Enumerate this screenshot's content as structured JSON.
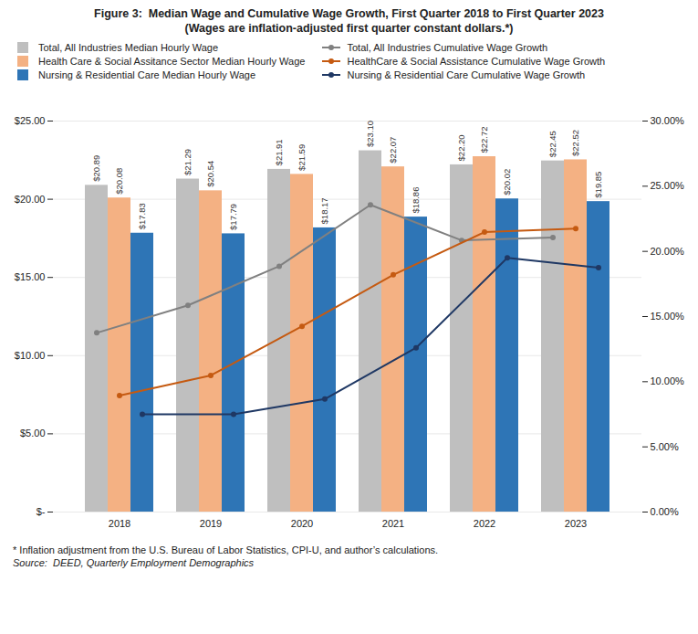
{
  "chart_data": {
    "type": "bar",
    "title": "Figure 3:  Median Wage and Cumulative Wage Growth, First Quarter 2018 to First Quarter 2023",
    "subtitle": "(Wages are inflation-adjusted first quarter constant dollars.*)",
    "categories": [
      "2018",
      "2019",
      "2020",
      "2021",
      "2022",
      "2023"
    ],
    "series": [
      {
        "name": "Total, All Industries Median Hourly Wage",
        "color": "#BFBFBF",
        "values": [
          20.89,
          21.29,
          21.91,
          23.1,
          22.2,
          22.45
        ],
        "value_labels": [
          "$20.89",
          "$21.29",
          "$21.91",
          "$23.10",
          "$22.20",
          "$22.45"
        ]
      },
      {
        "name": "Health Care & Social Assitance Sector Median Hourly Wage",
        "color": "#F4B183",
        "values": [
          20.08,
          20.54,
          21.59,
          22.07,
          22.72,
          22.52
        ],
        "value_labels": [
          "$20.08",
          "$20.54",
          "$21.59",
          "$22.07",
          "$22.72",
          "$22.52"
        ]
      },
      {
        "name": "Nursing & Residential Care Median Hourly Wage",
        "color": "#2E75B6",
        "values": [
          17.83,
          17.79,
          18.17,
          18.86,
          20.02,
          19.85
        ],
        "value_labels": [
          "$17.83",
          "$17.79",
          "$18.17",
          "$18.86",
          "$20.02",
          "$19.85"
        ]
      },
      {
        "name": "Total, All Industries Cumulative Wage Growth",
        "type": "line",
        "axis": "y2",
        "color": "#808080",
        "marker": "circle",
        "values": [
          0.1375,
          0.1586,
          0.1886,
          0.2357,
          0.2084,
          0.2107
        ]
      },
      {
        "name": "HealthCare & Social Assistance Cumulative Wage Growth",
        "type": "line",
        "axis": "y2",
        "color": "#C55A11",
        "marker": "circle",
        "values": [
          0.0893,
          0.1048,
          0.1425,
          0.182,
          0.2148,
          0.2175
        ]
      },
      {
        "name": "Nursing & Residential Care Cumulative Wage Growth",
        "type": "line",
        "axis": "y2",
        "color": "#1F3864",
        "marker": "circle",
        "values": [
          0.075,
          0.075,
          0.0867,
          0.126,
          0.195,
          0.1875
        ]
      }
    ],
    "ylim": [
      0,
      25
    ],
    "yticks": [
      {
        "value": 0,
        "label": "$-"
      },
      {
        "value": 5,
        "label": "$5.00"
      },
      {
        "value": 10,
        "label": "$10.00"
      },
      {
        "value": 15,
        "label": "$15.00"
      },
      {
        "value": 20,
        "label": "$20.00"
      },
      {
        "value": 25,
        "label": "$25.00"
      }
    ],
    "y2lim": [
      0,
      0.3
    ],
    "y2ticks": [
      {
        "value": 0.0,
        "label": "0.00%"
      },
      {
        "value": 0.05,
        "label": "5.00%"
      },
      {
        "value": 0.1,
        "label": "10.00%"
      },
      {
        "value": 0.15,
        "label": "15.00%"
      },
      {
        "value": 0.2,
        "label": "20.00%"
      },
      {
        "value": 0.25,
        "label": "25.00%"
      },
      {
        "value": 0.3,
        "label": "30.00%"
      }
    ],
    "grid": true,
    "legend": "upper left",
    "data_labels": true,
    "annotations": [
      "* Inflation adjustment from the U.S. Bureau of Labor Statistics, CPI-U, and author’s calculations.",
      "Source:  DEED, Quarterly Employment Demographics"
    ]
  }
}
